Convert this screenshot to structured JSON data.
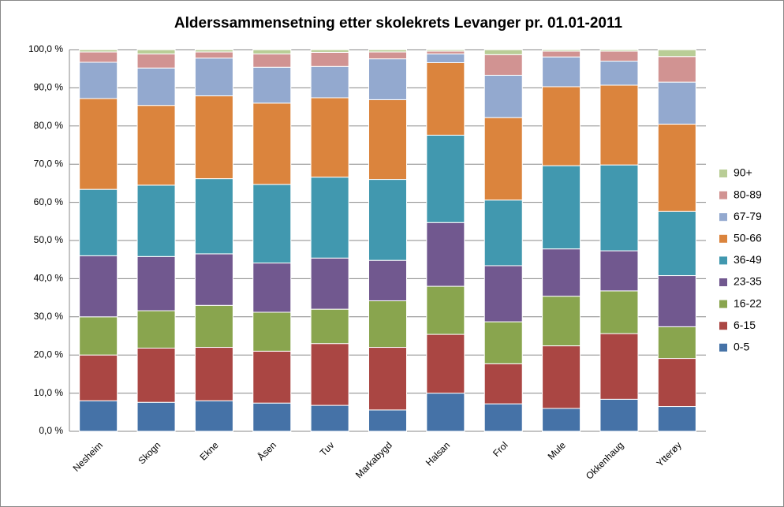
{
  "chart_data": {
    "type": "stacked_bar_100",
    "title": "Alderssammensetning etter skolekrets Levanger pr. 01.01-2011",
    "categories": [
      "Nesheim",
      "Skogn",
      "Ekne",
      "Åsen",
      "Tuv",
      "Markabygd",
      "Halsan",
      "Frol",
      "Mule",
      "Okkenhaug",
      "Ytterøy"
    ],
    "series": [
      {
        "name": "0-5",
        "color": "#4572a7",
        "values": [
          8.0,
          7.6,
          8.0,
          7.4,
          6.8,
          5.6,
          10.0,
          7.2,
          6.0,
          8.4,
          6.5
        ]
      },
      {
        "name": "6-15",
        "color": "#aa4643",
        "values": [
          12.0,
          14.2,
          14.0,
          13.6,
          16.2,
          16.4,
          15.4,
          10.5,
          16.4,
          17.2,
          12.6
        ]
      },
      {
        "name": "16-22",
        "color": "#89a54e",
        "values": [
          10.0,
          9.8,
          11.0,
          10.2,
          9.0,
          12.2,
          12.6,
          11.0,
          13.0,
          11.2,
          8.3
        ]
      },
      {
        "name": "23-35",
        "color": "#71588f",
        "values": [
          16.0,
          14.2,
          13.5,
          12.9,
          13.4,
          10.6,
          16.7,
          14.7,
          12.4,
          10.5,
          13.4
        ]
      },
      {
        "name": "36-49",
        "color": "#4198af",
        "values": [
          17.4,
          18.7,
          19.7,
          20.6,
          21.2,
          21.2,
          22.9,
          17.2,
          21.8,
          22.5,
          16.8
        ]
      },
      {
        "name": "50-66",
        "color": "#db843d",
        "values": [
          23.8,
          20.9,
          21.7,
          21.3,
          20.8,
          20.9,
          19.0,
          21.6,
          20.7,
          20.9,
          22.9
        ]
      },
      {
        "name": "67-79",
        "color": "#93a9cf",
        "values": [
          9.5,
          9.8,
          9.9,
          9.4,
          8.2,
          10.7,
          2.3,
          11.1,
          7.8,
          6.3,
          11.0
        ]
      },
      {
        "name": "80-89",
        "color": "#d19392",
        "values": [
          2.7,
          3.7,
          1.6,
          3.5,
          3.7,
          1.8,
          0.7,
          5.4,
          1.5,
          2.6,
          6.7
        ]
      },
      {
        "name": "90+",
        "color": "#b9cd96",
        "values": [
          0.6,
          1.1,
          0.6,
          1.1,
          0.7,
          0.6,
          0.4,
          1.3,
          0.4,
          0.4,
          1.8
        ]
      }
    ],
    "ylim": [
      0,
      100
    ],
    "yticks": [
      {
        "value": 0,
        "label": "0,0 %"
      },
      {
        "value": 10,
        "label": "10,0 %"
      },
      {
        "value": 20,
        "label": "20,0 %"
      },
      {
        "value": 30,
        "label": "30,0 %"
      },
      {
        "value": 40,
        "label": "40,0 %"
      },
      {
        "value": 50,
        "label": "50,0 %"
      },
      {
        "value": 60,
        "label": "60,0 %"
      },
      {
        "value": 70,
        "label": "70,0 %"
      },
      {
        "value": 80,
        "label": "80,0 %"
      },
      {
        "value": 90,
        "label": "90,0 %"
      },
      {
        "value": 100,
        "label": "100,0 %"
      }
    ],
    "grid": true,
    "legend": "right"
  }
}
